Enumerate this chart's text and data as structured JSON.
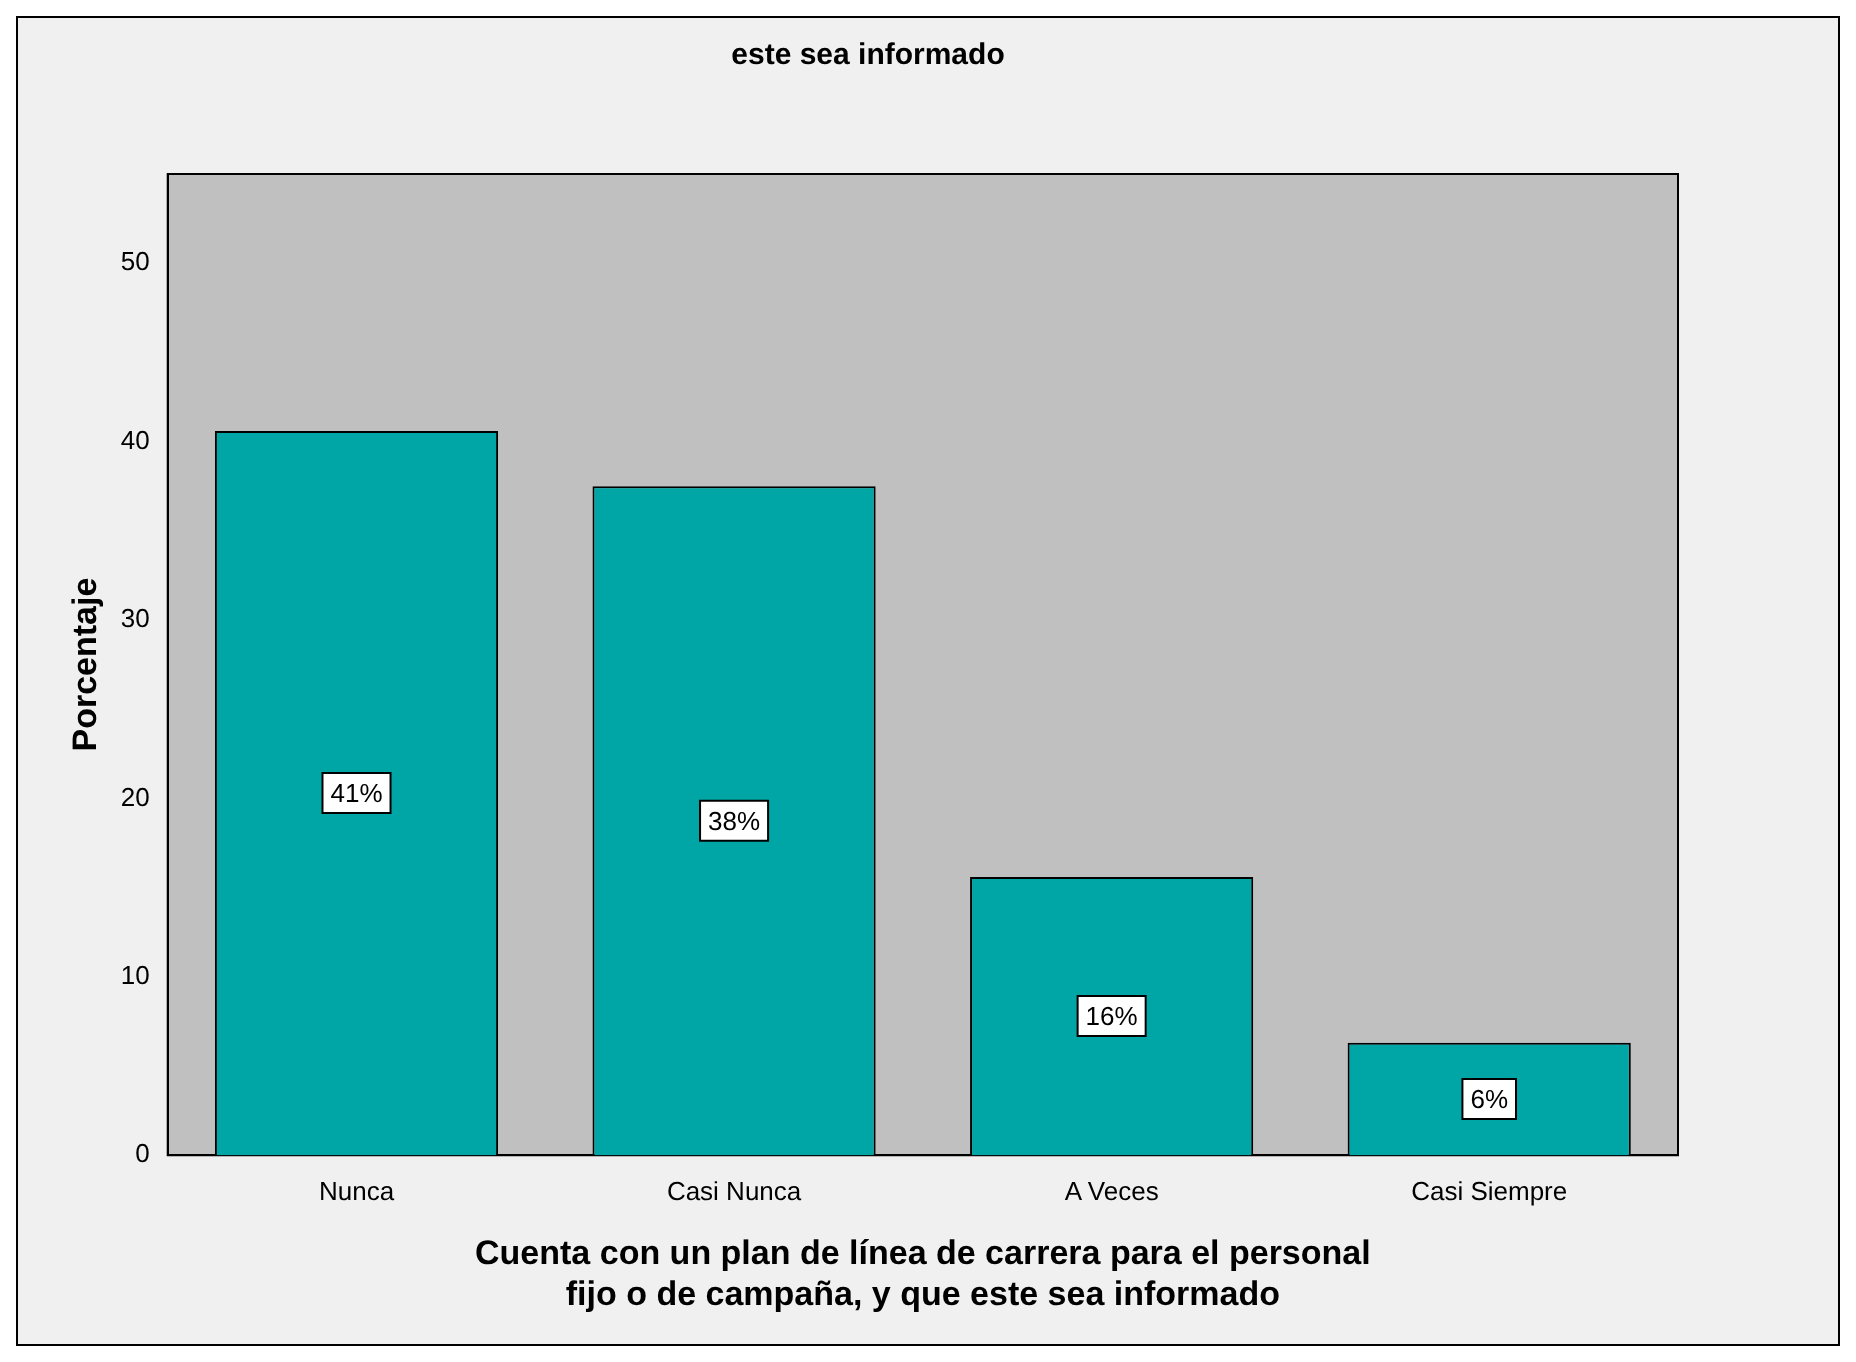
{
  "chart_data": {
    "type": "bar",
    "title": "este sea informado",
    "xlabel": "Cuenta con un plan de línea de carrera para el personal fijo o de campaña, y que este sea informado",
    "ylabel": "Porcentaje",
    "categories": [
      "Nunca",
      "Casi Nunca",
      "A Veces",
      "Casi Siempre"
    ],
    "values": [
      40.6,
      37.5,
      15.6,
      6.3
    ],
    "value_labels": [
      "41%",
      "38%",
      "16%",
      "6%"
    ],
    "color": "#00a6a6",
    "ylim": [
      0,
      55
    ],
    "yticks": [
      0,
      10,
      20,
      30,
      40,
      50
    ],
    "grid": false,
    "legend": false
  }
}
